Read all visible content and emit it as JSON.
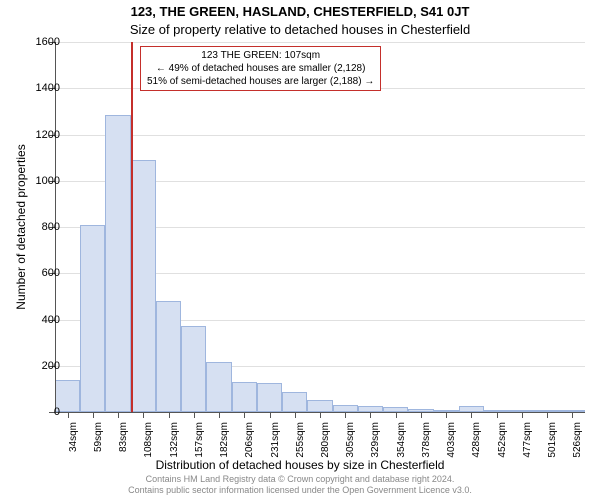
{
  "title_main": "123, THE GREEN, HASLAND, CHESTERFIELD, S41 0JT",
  "title_sub": "Size of property relative to detached houses in Chesterfield",
  "chart": {
    "type": "histogram",
    "ylabel": "Number of detached properties",
    "xlabel": "Distribution of detached houses by size in Chesterfield",
    "ylim": [
      0,
      1600
    ],
    "ytick_step": 200,
    "yticks": [
      0,
      200,
      400,
      600,
      800,
      1000,
      1200,
      1400,
      1600
    ],
    "x_categories": [
      "34sqm",
      "59sqm",
      "83sqm",
      "108sqm",
      "132sqm",
      "157sqm",
      "182sqm",
      "206sqm",
      "231sqm",
      "255sqm",
      "280sqm",
      "305sqm",
      "329sqm",
      "354sqm",
      "378sqm",
      "403sqm",
      "428sqm",
      "452sqm",
      "477sqm",
      "501sqm",
      "526sqm"
    ],
    "values": [
      140,
      810,
      1285,
      1090,
      480,
      370,
      215,
      130,
      125,
      85,
      50,
      30,
      25,
      20,
      15,
      10,
      25,
      5,
      3,
      3,
      3
    ],
    "bar_fill": "#d6e0f2",
    "bar_border": "#9fb6de",
    "background_color": "#ffffff",
    "grid_color": "#e0e0e0",
    "axis_color": "#555555",
    "marker": {
      "position_index": 3.0,
      "color": "#c42f2b"
    },
    "annotation": {
      "border_color": "#c42f2b",
      "lines": [
        "123 THE GREEN: 107sqm",
        "← 49% of detached houses are smaller (2,128)",
        "51% of semi-detached houses are larger (2,188) →"
      ]
    },
    "label_fontsize": 12,
    "tick_fontsize": 11
  },
  "footer": {
    "line1": "Contains HM Land Registry data © Crown copyright and database right 2024.",
    "line2": "Contains public sector information licensed under the Open Government Licence v3.0."
  }
}
